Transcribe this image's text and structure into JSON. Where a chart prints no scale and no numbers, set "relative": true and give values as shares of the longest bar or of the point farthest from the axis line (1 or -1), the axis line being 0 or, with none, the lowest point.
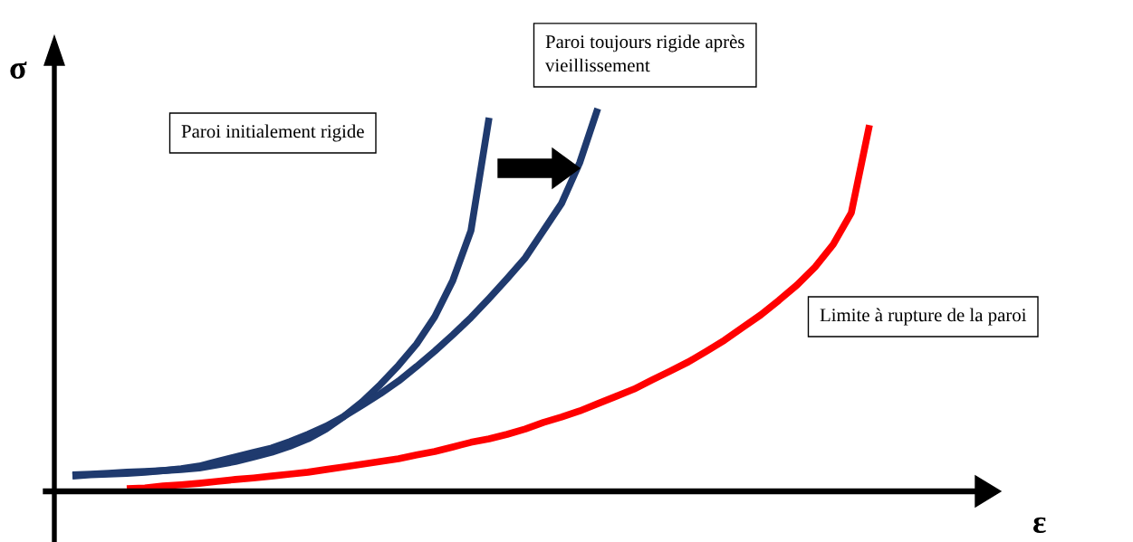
{
  "chart_data": {
    "type": "line",
    "relative": true,
    "xlabel": "ε",
    "ylabel": "σ",
    "categories": [
      null,
      null,
      null,
      null,
      null,
      null,
      null,
      null,
      null,
      null,
      null,
      null,
      null,
      null,
      null,
      null,
      null,
      null,
      null,
      null,
      null,
      null,
      null,
      null,
      null,
      null,
      null,
      null,
      null,
      null,
      null,
      null,
      null,
      null,
      null,
      null,
      null,
      null,
      null,
      null,
      null,
      null,
      null,
      null,
      null,
      null,
      null,
      null,
      null,
      null,
      null,
      null
    ],
    "series": [
      {
        "color": "#1f3a6e",
        "values": [
          null,
          0.043,
          0.045,
          0.047,
          0.05,
          0.052,
          0.054,
          0.057,
          0.061,
          0.069,
          0.078,
          0.09,
          0.102,
          0.118,
          0.137,
          0.163,
          0.196,
          0.234,
          0.279,
          0.329,
          0.385,
          0.456,
          0.551,
          0.681,
          0.976,
          null,
          null,
          null,
          null,
          null,
          null,
          null,
          null,
          null,
          null,
          null,
          null,
          null,
          null,
          null,
          null,
          null,
          null,
          null,
          null,
          null,
          null,
          null,
          null,
          null,
          null,
          null
        ]
      },
      {
        "color": "#1f3a6e",
        "values": [
          null,
          0.04,
          0.043,
          0.045,
          0.047,
          0.05,
          0.054,
          0.059,
          0.066,
          0.078,
          0.09,
          0.102,
          0.113,
          0.13,
          0.149,
          0.17,
          0.196,
          0.225,
          0.255,
          0.288,
          0.326,
          0.366,
          0.409,
          0.454,
          0.504,
          0.556,
          0.61,
          0.681,
          0.752,
          0.858,
          1,
          null,
          null,
          null,
          null,
          null,
          null,
          null,
          null,
          null,
          null,
          null,
          null,
          null,
          null,
          null,
          null,
          null,
          null,
          null,
          null,
          null
        ]
      },
      {
        "color": "#ff0000",
        "values": [
          null,
          null,
          null,
          null,
          0.007,
          0.009,
          0.014,
          0.017,
          0.021,
          0.026,
          0.031,
          0.035,
          0.04,
          0.045,
          0.05,
          0.057,
          0.064,
          0.071,
          0.078,
          0.085,
          0.095,
          0.104,
          0.116,
          0.128,
          0.137,
          0.149,
          0.163,
          0.18,
          0.194,
          0.21,
          0.229,
          0.248,
          0.267,
          0.291,
          0.314,
          0.338,
          0.366,
          0.395,
          0.428,
          0.461,
          0.499,
          0.539,
          0.586,
          0.645,
          0.728,
          0.957,
          null,
          null,
          null,
          null,
          null,
          null
        ]
      }
    ],
    "annotations": [
      "Paroi initialement rigide",
      "Paroi toujours rigide après vieillissement",
      "Limite à rupture de la paroi"
    ],
    "legend": false,
    "marker": "none",
    "line_style": "solid"
  }
}
